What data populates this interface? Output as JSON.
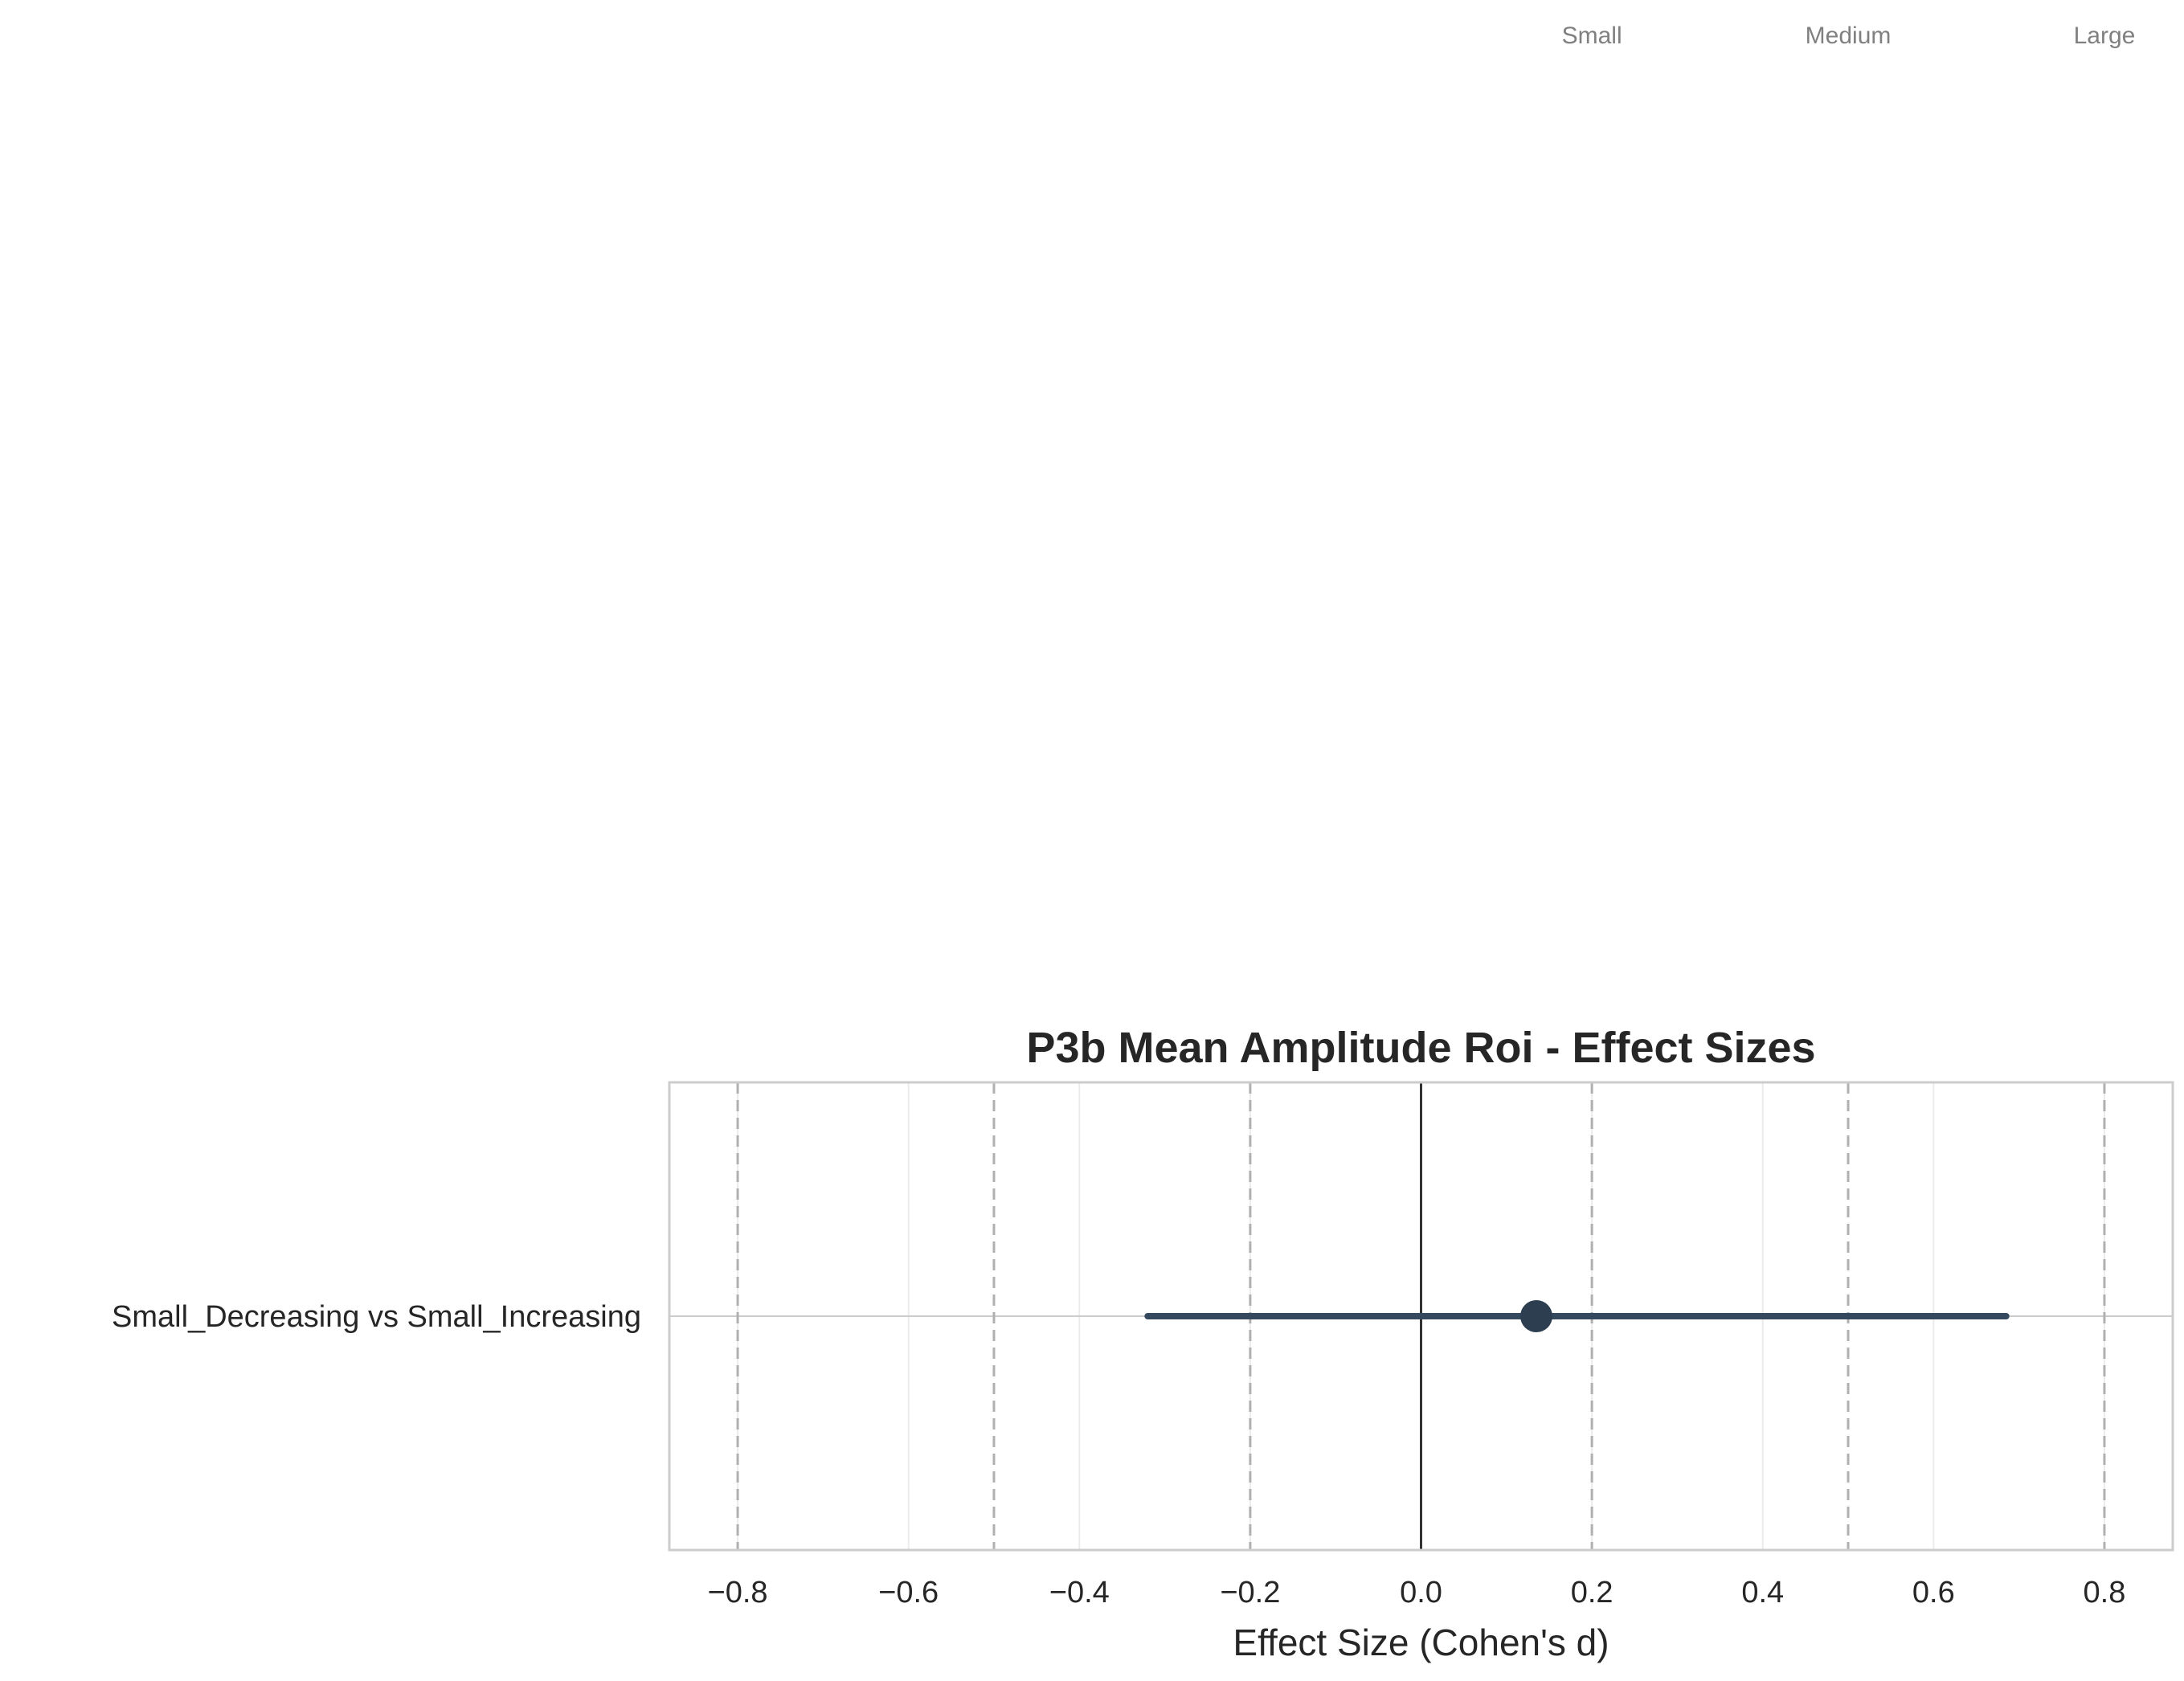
{
  "chart_data": {
    "type": "forest",
    "title": "P3b Mean Amplitude Roi - Effect Sizes",
    "xlabel": "Effect Size (Cohen's d)",
    "ylabel": "",
    "xlim": [
      -0.88,
      0.88
    ],
    "xticks": [
      -0.8,
      -0.6,
      -0.4,
      -0.2,
      0.0,
      0.2,
      0.4,
      0.6,
      0.8
    ],
    "xtick_labels": [
      "−0.8",
      "−0.6",
      "−0.4",
      "−0.2",
      "0.0",
      "0.2",
      "0.4",
      "0.6",
      "0.8"
    ],
    "grid": true,
    "reference_line": 0.0,
    "thresholds": [
      {
        "value": -0.8,
        "label": ""
      },
      {
        "value": -0.5,
        "label": ""
      },
      {
        "value": -0.2,
        "label": ""
      },
      {
        "value": 0.2,
        "label": "Small"
      },
      {
        "value": 0.5,
        "label": "Medium"
      },
      {
        "value": 0.8,
        "label": "Large"
      }
    ],
    "comparisons": [
      {
        "label": "Small_Decreasing vs Small_Increasing",
        "d": 0.135,
        "ci_low": -0.32,
        "ci_high": 0.685
      }
    ],
    "colors": {
      "point": "#2c3e50",
      "ci_line": "#34495e",
      "reference": "#333333",
      "threshold": "#b0b0b0",
      "grid": "#ebebeb",
      "frame": "#cccccc"
    }
  }
}
